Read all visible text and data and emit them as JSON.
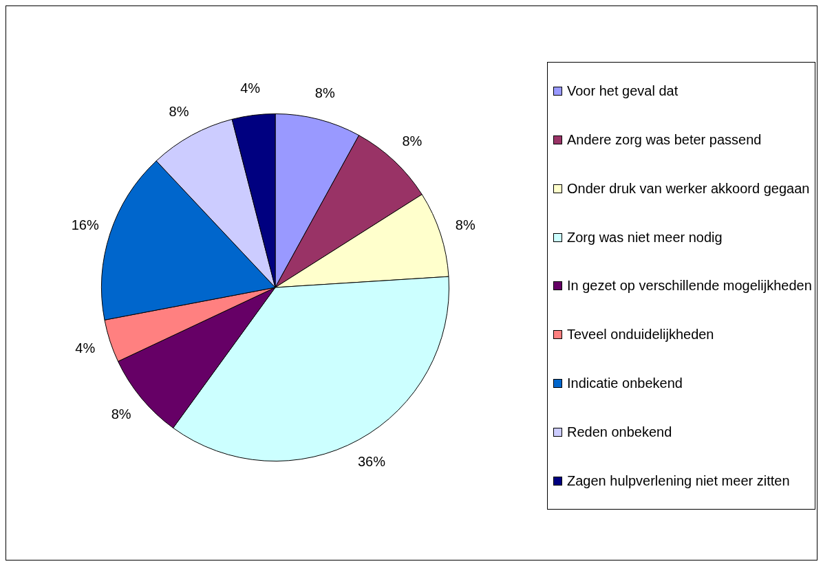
{
  "chart_data": {
    "type": "pie",
    "categories": [
      "Voor het geval dat",
      "Andere zorg was beter passend",
      "Onder druk van werker akkoord gegaan",
      "Zorg was niet meer nodig",
      "In gezet op verschillende mogelijkheden",
      "Teveel onduidelijkheden",
      "Indicatie onbekend",
      "Reden onbekend",
      "Zagen hulpverlening niet meer zitten"
    ],
    "values": [
      8,
      8,
      8,
      36,
      8,
      4,
      16,
      8,
      4
    ],
    "value_labels": [
      "8%",
      "8%",
      "8%",
      "36%",
      "8%",
      "4%",
      "16%",
      "8%",
      "4%"
    ],
    "colors": [
      "#9999ff",
      "#993366",
      "#ffffcc",
      "#ccffff",
      "#660066",
      "#ff8080",
      "#0066cc",
      "#ccccff",
      "#000080"
    ],
    "legend": "right"
  }
}
